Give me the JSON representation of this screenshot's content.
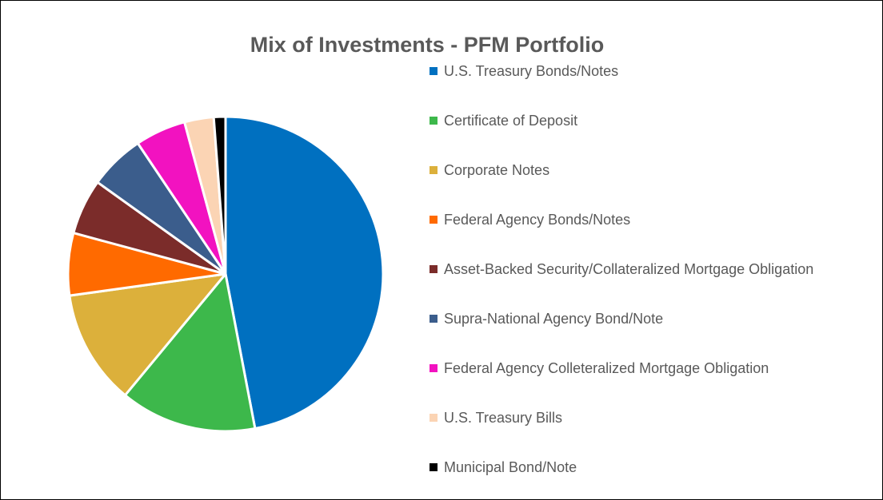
{
  "chart_data": {
    "type": "pie",
    "title": "Mix of Investments - PFM Portfolio",
    "categories": [
      "U.S. Treasury Bonds/Notes",
      "Certificate of Deposit",
      "Corporate Notes",
      "Federal Agency Bonds/Notes",
      "Asset-Backed Security/Collateralized Mortgage Obligation",
      "Supra-National Agency Bond/Note",
      "Federal Agency Colleteralized Mortgage Obligation",
      "U.S. Treasury Bills",
      "Municipal Bond/Note"
    ],
    "values": [
      47,
      14,
      11.8,
      6.4,
      5.7,
      5.7,
      5.2,
      3,
      1.2
    ],
    "colors": [
      "#0070c0",
      "#3db84b",
      "#dcb03b",
      "#ff6a00",
      "#7b2c2a",
      "#3b5d8c",
      "#f212c0",
      "#fbd4b4",
      "#000000"
    ],
    "legend": "right"
  }
}
